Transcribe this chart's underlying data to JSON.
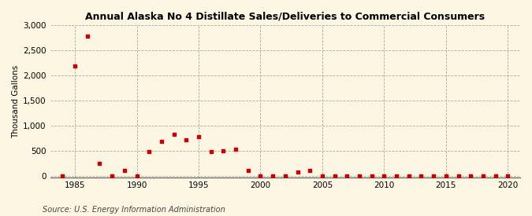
{
  "title": "Annual Alaska No 4 Distillate Sales/Deliveries to Commercial Consumers",
  "ylabel": "Thousand Gallons",
  "source": "Source: U.S. Energy Information Administration",
  "background_color": "#fdf6e3",
  "plot_bg_color": "#fdf6e3",
  "marker_color": "#cc0000",
  "xlim": [
    1983,
    2021
  ],
  "ylim": [
    -30,
    3000
  ],
  "yticks": [
    0,
    500,
    1000,
    1500,
    2000,
    2500,
    3000
  ],
  "ytick_labels": [
    "0",
    "500",
    "1,000",
    "1,500",
    "2,000",
    "2,500",
    "3,000"
  ],
  "xticks": [
    1985,
    1990,
    1995,
    2000,
    2005,
    2010,
    2015,
    2020
  ],
  "data": {
    "1984": 2,
    "1985": 2190,
    "1986": 2780,
    "1987": 250,
    "1988": 2,
    "1989": 110,
    "1990": 2,
    "1991": 490,
    "1992": 680,
    "1993": 820,
    "1994": 720,
    "1995": 785,
    "1996": 490,
    "1997": 500,
    "1998": 530,
    "1999": 110,
    "2000": 2,
    "2001": 2,
    "2002": 2,
    "2003": 75,
    "2004": 110,
    "2005": 2,
    "2006": 2,
    "2007": 2,
    "2008": 2,
    "2009": 2,
    "2010": 2,
    "2011": 2,
    "2012": 2,
    "2013": 2,
    "2014": 2,
    "2015": 2,
    "2016": 2,
    "2017": 2,
    "2018": 2,
    "2019": 2,
    "2020": 2
  }
}
